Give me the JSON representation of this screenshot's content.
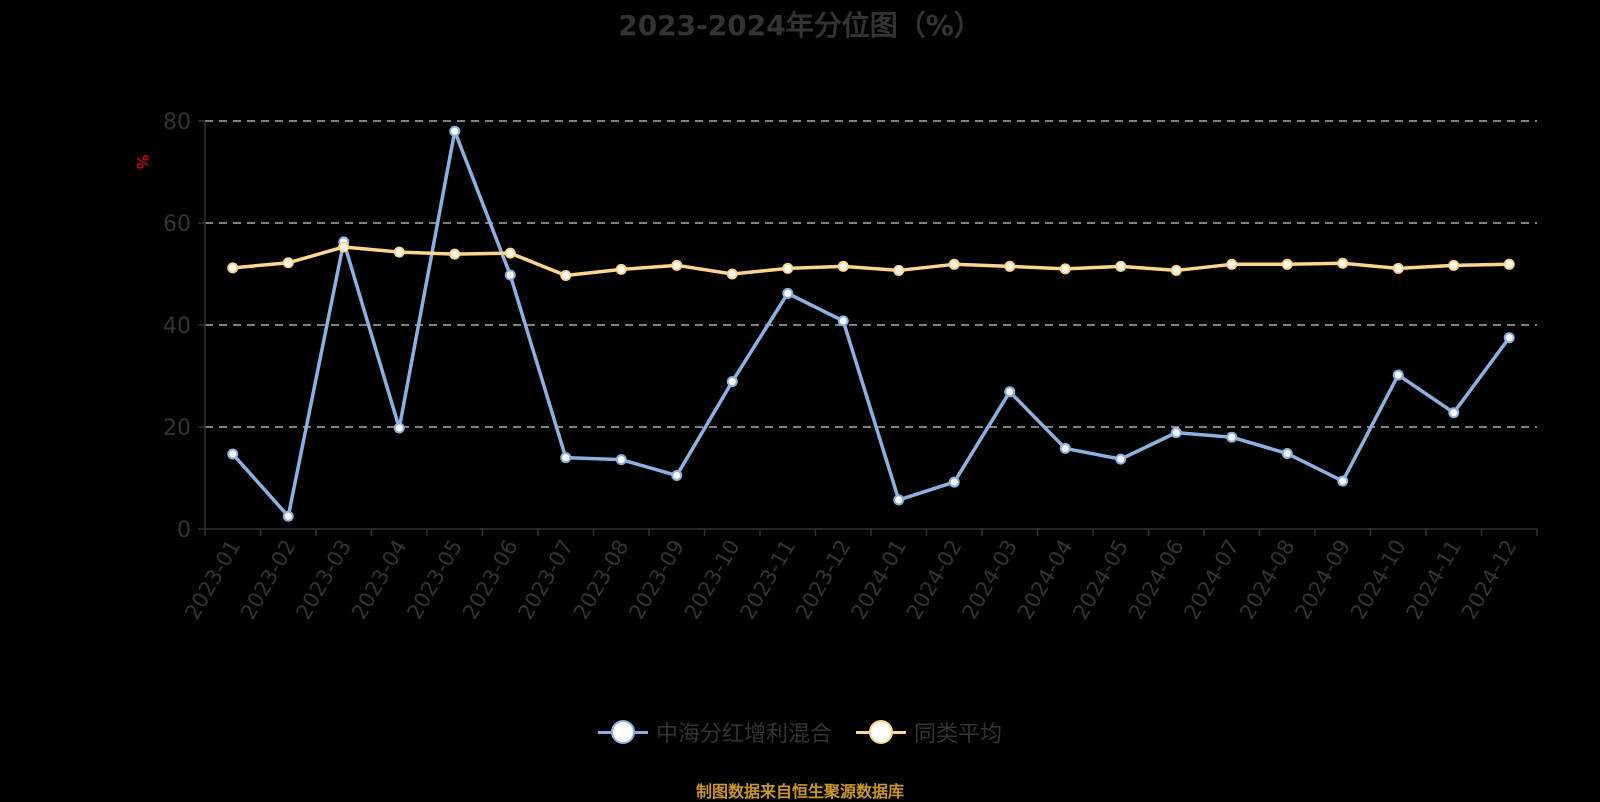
{
  "title": "2023-2024年分位图（%）",
  "source_note": "制图数据来自恒生聚源数据库",
  "legend": [
    {
      "label": "中海分红增利混合",
      "color": "#8eb0e0"
    },
    {
      "label": "同类平均",
      "color": "#fdd58c"
    }
  ],
  "chart_data": {
    "type": "line",
    "title": "2023-2024年分位图（%）",
    "xlabel": "",
    "ylabel": "%",
    "ylim": [
      0,
      80
    ],
    "yticks": [
      0,
      20,
      40,
      60,
      80
    ],
    "grid": true,
    "legend_position": "bottom",
    "categories": [
      "2023-01",
      "2023-02",
      "2023-03",
      "2023-04",
      "2023-05",
      "2023-06",
      "2023-07",
      "2023-08",
      "2023-09",
      "2023-10",
      "2023-11",
      "2023-12",
      "2024-01",
      "2024-02",
      "2024-03",
      "2024-04",
      "2024-05",
      "2024-06",
      "2024-07",
      "2024-08",
      "2024-09",
      "2024-10",
      "2024-11",
      "2024-12"
    ],
    "series": [
      {
        "name": "中海分红增利混合",
        "color": "#8eb0e0",
        "values": [
          14.7,
          2.5,
          56.3,
          19.8,
          78.0,
          49.8,
          14.0,
          13.6,
          10.5,
          28.9,
          46.2,
          40.8,
          5.7,
          9.2,
          26.9,
          15.8,
          13.7,
          18.9,
          18.0,
          14.8,
          9.4,
          30.2,
          22.8,
          37.5
        ]
      },
      {
        "name": "同类平均",
        "color": "#fdd58c",
        "values": [
          51.2,
          52.2,
          55.3,
          54.3,
          53.9,
          54.1,
          49.7,
          50.9,
          51.7,
          50.0,
          51.1,
          51.5,
          50.7,
          51.9,
          51.5,
          51.0,
          51.5,
          50.7,
          51.9,
          51.9,
          52.1,
          51.1,
          51.7,
          51.9
        ]
      }
    ]
  }
}
